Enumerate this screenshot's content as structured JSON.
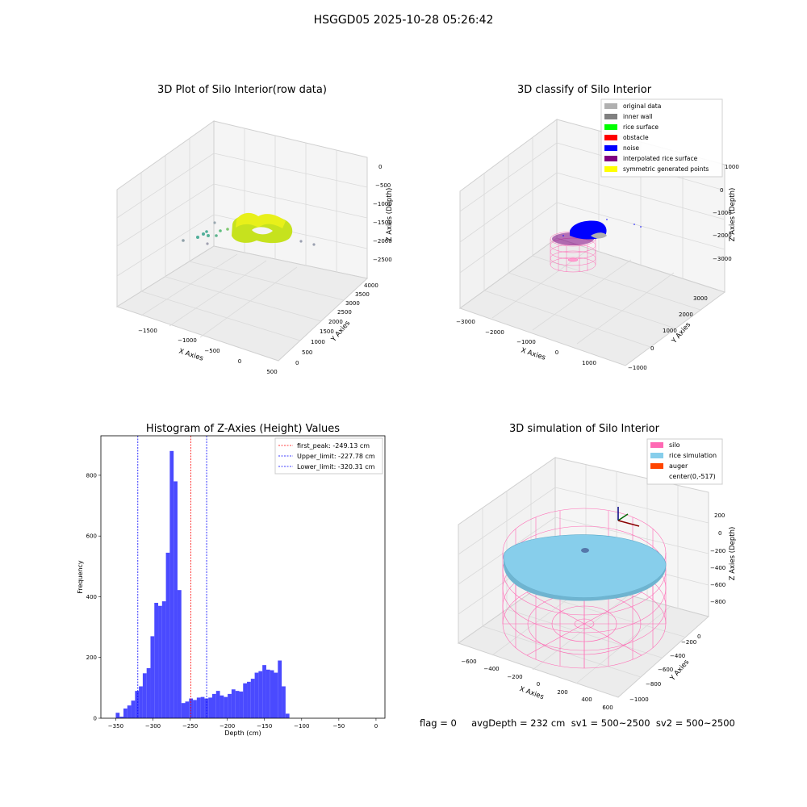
{
  "figure_title": "HSGGD05 2025-10-28 05:26:42",
  "footer_text": "flag = 0     avgDepth = 232 cm  sv1 = 500~2500  sv2 = 500~2500",
  "colors": {
    "grid_pane": "#f2f2f2",
    "grid_line": "#d9d9d9",
    "hist_bar": "#4a4aff",
    "peak_line": "#ff0000",
    "limit_line": "#0000ff",
    "silo_pink": "#ff69b4",
    "rice_sim": "#87ceeb"
  },
  "chart_data": [
    {
      "type": "scatter3d",
      "title": "3D Plot of Silo Interior(row data)",
      "xlabel": "X Axies",
      "ylabel": "Y Axies",
      "zlabel": "Z Axies (Depth)",
      "xticks": [
        "−1500",
        "−1000",
        "−500",
        "0",
        "500"
      ],
      "yticks": [
        "0",
        "500",
        "1000",
        "1500",
        "2000",
        "2500",
        "3000",
        "3500",
        "4000"
      ],
      "zticks": [
        "0",
        "−500",
        "−1000",
        "−1500",
        "−2000",
        "−2500"
      ]
    },
    {
      "type": "scatter3d",
      "title": "3D classify of Silo Interior",
      "xlabel": "X Axies",
      "ylabel": "Y Axies",
      "zlabel": "Z Axies (Depth)",
      "xticks": [
        "−3000",
        "−2000",
        "−1000",
        "0",
        "1000"
      ],
      "yticks": [
        "−1000",
        "0",
        "1000",
        "2000",
        "3000"
      ],
      "zticks": [
        "1000",
        "0",
        "−1000",
        "−2000",
        "−3000"
      ],
      "legend": [
        {
          "label": "original data",
          "color": "#b0b0b0"
        },
        {
          "label": "inner wall",
          "color": "#808080"
        },
        {
          "label": "rice surface",
          "color": "#00ff00"
        },
        {
          "label": "obstacle",
          "color": "#ff0000"
        },
        {
          "label": "noise",
          "color": "#0000ff"
        },
        {
          "label": "interpolated rice surface",
          "color": "#800080"
        },
        {
          "label": "symmetric generated points",
          "color": "#ffff00"
        }
      ]
    },
    {
      "type": "bar",
      "title": "Histogram of Z-Axies (Height) Values",
      "xlabel": "Depth (cm)",
      "ylabel": "Frequency",
      "xlim": [
        -370,
        12
      ],
      "ylim": [
        0,
        930
      ],
      "xticks": [
        -350,
        -300,
        -250,
        -200,
        -150,
        -100,
        -50,
        0
      ],
      "xtick_labels": [
        "−350",
        "−300",
        "−250",
        "−200",
        "−150",
        "−100",
        "−50",
        "0"
      ],
      "yticks": [
        0,
        200,
        400,
        600,
        800
      ],
      "yticks_labels": [
        "0",
        "200",
        "400",
        "600",
        "800"
      ],
      "bin_start": -350,
      "bin_width": 5.19,
      "values": [
        18,
        5,
        32,
        42,
        58,
        90,
        105,
        148,
        165,
        270,
        380,
        370,
        385,
        545,
        880,
        780,
        422,
        50,
        55,
        65,
        60,
        68,
        70,
        65,
        68,
        80,
        90,
        75,
        70,
        80,
        95,
        90,
        88,
        115,
        120,
        130,
        150,
        155,
        175,
        160,
        158,
        150,
        190,
        105,
        15
      ],
      "vlines": [
        {
          "x": -249.13,
          "label": "first_peak: -249.13 cm",
          "color": "#ff0000"
        },
        {
          "x": -227.78,
          "label": "Upper_limit: -227.78 cm",
          "color": "#0000ff"
        },
        {
          "x": -320.31,
          "label": "Lower_limit: -320.31 cm",
          "color": "#0000ff"
        }
      ]
    },
    {
      "type": "surface3d",
      "title": "3D simulation of Silo Interior",
      "xlabel": "X Axies",
      "ylabel": "Y Axies",
      "zlabel": "Z Axies (Depth)",
      "xticks": [
        "−600",
        "−400",
        "−200",
        "0",
        "200",
        "400",
        "600"
      ],
      "yticks": [
        "−1000",
        "−800",
        "−600",
        "−400",
        "−200",
        "0"
      ],
      "zticks": [
        "200",
        "0",
        "−200",
        "−400",
        "−600",
        "−800"
      ],
      "legend": [
        {
          "label": "silo",
          "color": "#ff69b4"
        },
        {
          "label": "rice simulation",
          "color": "#87ceeb"
        },
        {
          "label": "auger",
          "color": "#ff4500"
        },
        {
          "label": "center(0,-517)",
          "color": ""
        }
      ]
    }
  ]
}
